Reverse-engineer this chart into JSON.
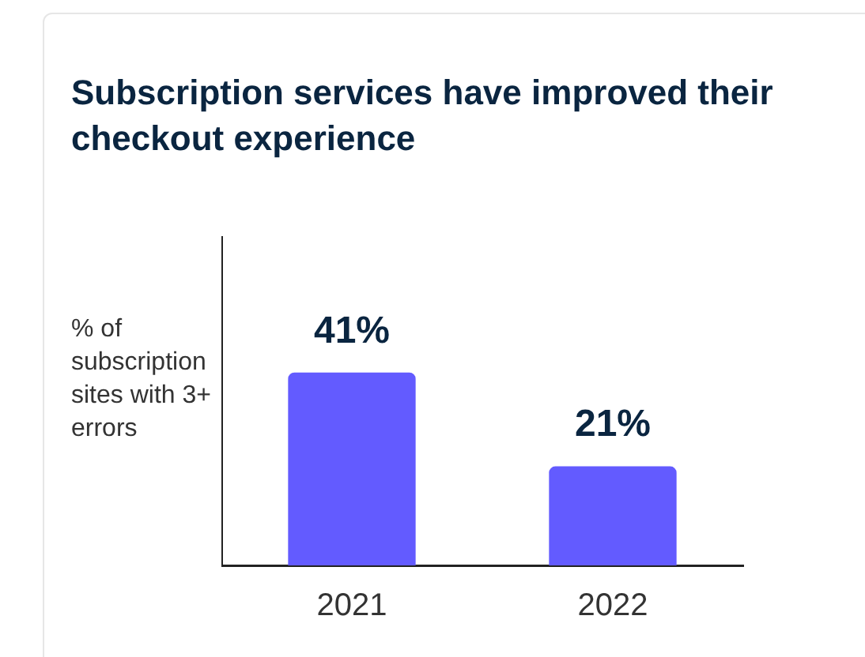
{
  "chart_data": {
    "type": "bar",
    "title": "Subscription services have improved their checkout experience",
    "ylabel": "% of subscription sites with 3+ errors",
    "categories": [
      "2021",
      "2022"
    ],
    "values": [
      41,
      21
    ],
    "value_labels": [
      "41%",
      "21%"
    ],
    "color": "#635bff",
    "ylim": [
      0,
      70
    ],
    "tick_labels": "x",
    "grid": false,
    "legend": false
  }
}
